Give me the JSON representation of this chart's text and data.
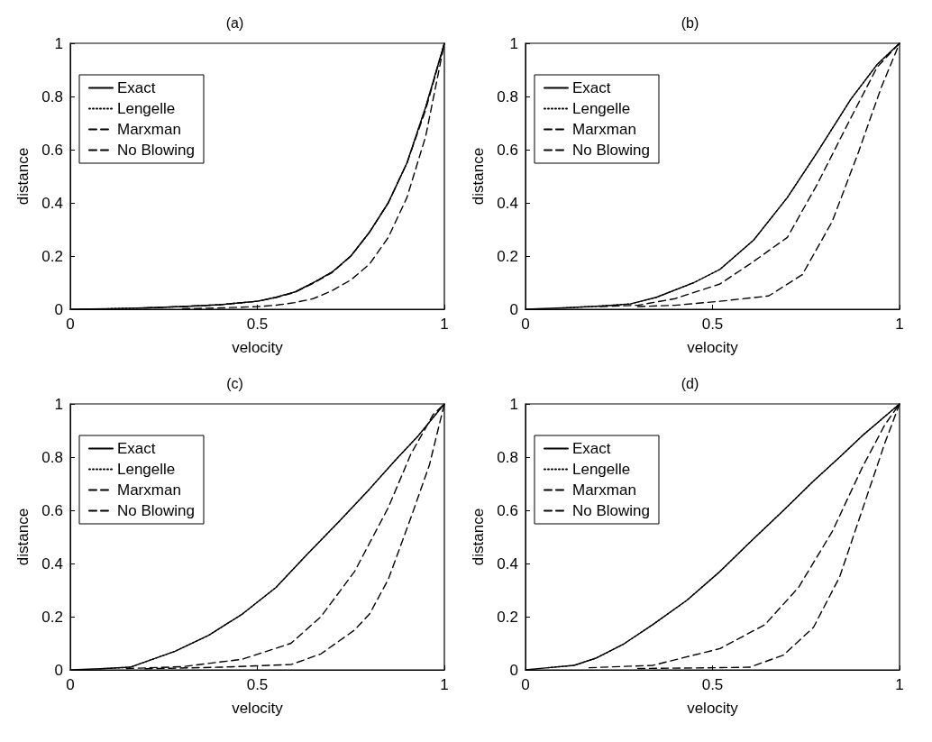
{
  "chart_data": [
    {
      "type": "line",
      "title": "(a)",
      "xlabel": "velocity",
      "ylabel": "distance",
      "xlim": [
        0,
        1
      ],
      "ylim": [
        0,
        1
      ],
      "xticks": [
        0,
        0.5,
        1
      ],
      "yticks": [
        0,
        0.2,
        0.4,
        0.6,
        0.8,
        1
      ],
      "grid": false,
      "legend": "top left",
      "marker": "none",
      "series": [
        {
          "name": "Exact",
          "color": "#000000",
          "line_style": "solid",
          "x": [
            0,
            0.1,
            0.2,
            0.3,
            0.4,
            0.5,
            0.55,
            0.6,
            0.65,
            0.7,
            0.75,
            0.8,
            0.85,
            0.9,
            0.95,
            1
          ],
          "values": [
            0,
            0.002,
            0.005,
            0.01,
            0.017,
            0.03,
            0.045,
            0.065,
            0.1,
            0.14,
            0.2,
            0.29,
            0.4,
            0.55,
            0.76,
            1
          ]
        },
        {
          "name": "Lengelle",
          "color": "#000000",
          "line_style": "dotted",
          "x": [
            0.1,
            0.2,
            0.3,
            0.4,
            0.5,
            0.55,
            0.6,
            0.65,
            0.7,
            0.75,
            0.8,
            0.85,
            0.9,
            0.95,
            1
          ],
          "values": [
            0.002,
            0.005,
            0.01,
            0.017,
            0.03,
            0.045,
            0.065,
            0.1,
            0.14,
            0.2,
            0.29,
            0.4,
            0.55,
            0.76,
            1
          ]
        },
        {
          "name": "Marxman",
          "color": "#000000",
          "line_style": "dashed",
          "x": [
            0.2,
            0.3,
            0.4,
            0.5,
            0.55,
            0.6,
            0.65,
            0.7,
            0.75,
            0.8,
            0.85,
            0.9,
            0.95,
            1
          ],
          "values": [
            0.005,
            0.01,
            0.017,
            0.03,
            0.044,
            0.063,
            0.098,
            0.138,
            0.2,
            0.29,
            0.4,
            0.55,
            0.75,
            1
          ]
        },
        {
          "name": "No Blowing",
          "color": "#000000",
          "line_style": "dashed",
          "x": [
            0.3,
            0.4,
            0.5,
            0.55,
            0.6,
            0.65,
            0.7,
            0.75,
            0.8,
            0.85,
            0.9,
            0.95,
            1
          ],
          "values": [
            0.002,
            0.005,
            0.01,
            0.015,
            0.025,
            0.04,
            0.07,
            0.11,
            0.17,
            0.27,
            0.42,
            0.65,
            1
          ]
        }
      ]
    },
    {
      "type": "line",
      "title": "(b)",
      "xlabel": "velocity",
      "ylabel": "distance",
      "xlim": [
        0,
        1
      ],
      "ylim": [
        0,
        1
      ],
      "xticks": [
        0,
        0.5,
        1
      ],
      "yticks": [
        0,
        0.2,
        0.4,
        0.6,
        0.8,
        1
      ],
      "grid": false,
      "legend": "top left",
      "marker": "none",
      "series": [
        {
          "name": "Exact",
          "color": "#000000",
          "line_style": "solid",
          "x": [
            0,
            0.1,
            0.2,
            0.28,
            0.35,
            0.45,
            0.52,
            0.61,
            0.7,
            0.78,
            0.87,
            0.94,
            1
          ],
          "values": [
            0,
            0.005,
            0.012,
            0.02,
            0.045,
            0.1,
            0.15,
            0.26,
            0.42,
            0.59,
            0.79,
            0.92,
            1
          ]
        },
        {
          "name": "Lengelle",
          "color": "#000000",
          "line_style": "dotted",
          "x": [
            0.1,
            0.2,
            0.28,
            0.35,
            0.45,
            0.52,
            0.61,
            0.7,
            0.78,
            0.87,
            0.94,
            1
          ],
          "values": [
            0.005,
            0.012,
            0.02,
            0.045,
            0.1,
            0.15,
            0.26,
            0.42,
            0.59,
            0.79,
            0.92,
            1
          ]
        },
        {
          "name": "Marxman",
          "color": "#000000",
          "line_style": "dashed",
          "x": [
            0.2,
            0.3,
            0.4,
            0.52,
            0.6,
            0.7,
            0.78,
            0.87,
            0.94,
            1
          ],
          "values": [
            0.01,
            0.015,
            0.04,
            0.095,
            0.17,
            0.27,
            0.47,
            0.72,
            0.91,
            1
          ]
        },
        {
          "name": "No Blowing",
          "color": "#000000",
          "line_style": "dashed",
          "x": [
            0.3,
            0.4,
            0.52,
            0.65,
            0.74,
            0.82,
            0.89,
            0.95,
            1
          ],
          "values": [
            0.01,
            0.015,
            0.03,
            0.05,
            0.13,
            0.33,
            0.59,
            0.83,
            1
          ]
        }
      ]
    },
    {
      "type": "line",
      "title": "(c)",
      "xlabel": "velocity",
      "ylabel": "distance",
      "xlim": [
        0,
        1
      ],
      "ylim": [
        0,
        1
      ],
      "xticks": [
        0,
        0.5,
        1
      ],
      "yticks": [
        0,
        0.2,
        0.4,
        0.6,
        0.8,
        1
      ],
      "grid": false,
      "legend": "top left",
      "marker": "none",
      "series": [
        {
          "name": "Exact",
          "color": "#000000",
          "line_style": "solid",
          "x": [
            0,
            0.08,
            0.16,
            0.28,
            0.37,
            0.46,
            0.55,
            0.63,
            0.72,
            0.8,
            0.87,
            0.93,
            1
          ],
          "values": [
            0,
            0.004,
            0.01,
            0.07,
            0.13,
            0.21,
            0.31,
            0.43,
            0.56,
            0.68,
            0.79,
            0.88,
            1
          ]
        },
        {
          "name": "Lengelle",
          "color": "#000000",
          "line_style": "dotted",
          "x": [
            0.08,
            0.16,
            0.28,
            0.37,
            0.46,
            0.55,
            0.63,
            0.72,
            0.8,
            0.87,
            0.93,
            1
          ],
          "values": [
            0.004,
            0.01,
            0.07,
            0.13,
            0.21,
            0.31,
            0.43,
            0.56,
            0.68,
            0.79,
            0.88,
            1
          ]
        },
        {
          "name": "Marxman",
          "color": "#000000",
          "line_style": "dashed",
          "x": [
            0.15,
            0.3,
            0.46,
            0.59,
            0.67,
            0.76,
            0.85,
            0.91,
            0.97,
            1
          ],
          "values": [
            0.005,
            0.012,
            0.04,
            0.1,
            0.2,
            0.37,
            0.61,
            0.81,
            0.96,
            1
          ]
        },
        {
          "name": "No Blowing",
          "color": "#000000",
          "line_style": "dashed",
          "x": [
            0.2,
            0.4,
            0.59,
            0.67,
            0.76,
            0.8,
            0.85,
            0.91,
            0.96,
            1
          ],
          "values": [
            0.004,
            0.01,
            0.02,
            0.06,
            0.15,
            0.21,
            0.34,
            0.57,
            0.77,
            1
          ]
        }
      ]
    },
    {
      "type": "line",
      "title": "(d)",
      "xlabel": "velocity",
      "ylabel": "distance",
      "xlim": [
        0,
        1
      ],
      "ylim": [
        0,
        1
      ],
      "xticks": [
        0,
        0.5,
        1
      ],
      "yticks": [
        0,
        0.2,
        0.4,
        0.6,
        0.8,
        1
      ],
      "grid": false,
      "legend": "top left",
      "marker": "none",
      "series": [
        {
          "name": "Exact",
          "color": "#000000",
          "line_style": "solid",
          "x": [
            0,
            0.06,
            0.13,
            0.19,
            0.26,
            0.34,
            0.43,
            0.52,
            0.6,
            0.69,
            0.77,
            0.84,
            0.9,
            0.95,
            1
          ],
          "values": [
            0,
            0.008,
            0.017,
            0.045,
            0.095,
            0.17,
            0.26,
            0.37,
            0.48,
            0.6,
            0.71,
            0.8,
            0.88,
            0.94,
            1
          ]
        },
        {
          "name": "Lengelle",
          "color": "#000000",
          "line_style": "dotted",
          "x": [
            0.06,
            0.13,
            0.19,
            0.26,
            0.34,
            0.43,
            0.52,
            0.6,
            0.69,
            0.77,
            0.84,
            0.9,
            0.95,
            1
          ],
          "values": [
            0.008,
            0.017,
            0.045,
            0.095,
            0.17,
            0.26,
            0.37,
            0.48,
            0.6,
            0.71,
            0.8,
            0.88,
            0.94,
            1
          ]
        },
        {
          "name": "Marxman",
          "color": "#000000",
          "line_style": "dashed",
          "x": [
            0.17,
            0.34,
            0.52,
            0.64,
            0.73,
            0.82,
            0.9,
            0.96,
            1
          ],
          "values": [
            0.008,
            0.017,
            0.08,
            0.17,
            0.31,
            0.52,
            0.76,
            0.92,
            1
          ]
        },
        {
          "name": "No Blowing",
          "color": "#000000",
          "line_style": "dashed",
          "x": [
            0.3,
            0.5,
            0.6,
            0.69,
            0.77,
            0.84,
            0.9,
            0.96,
            1
          ],
          "values": [
            0.005,
            0.008,
            0.01,
            0.056,
            0.16,
            0.35,
            0.6,
            0.85,
            1
          ]
        }
      ]
    }
  ]
}
